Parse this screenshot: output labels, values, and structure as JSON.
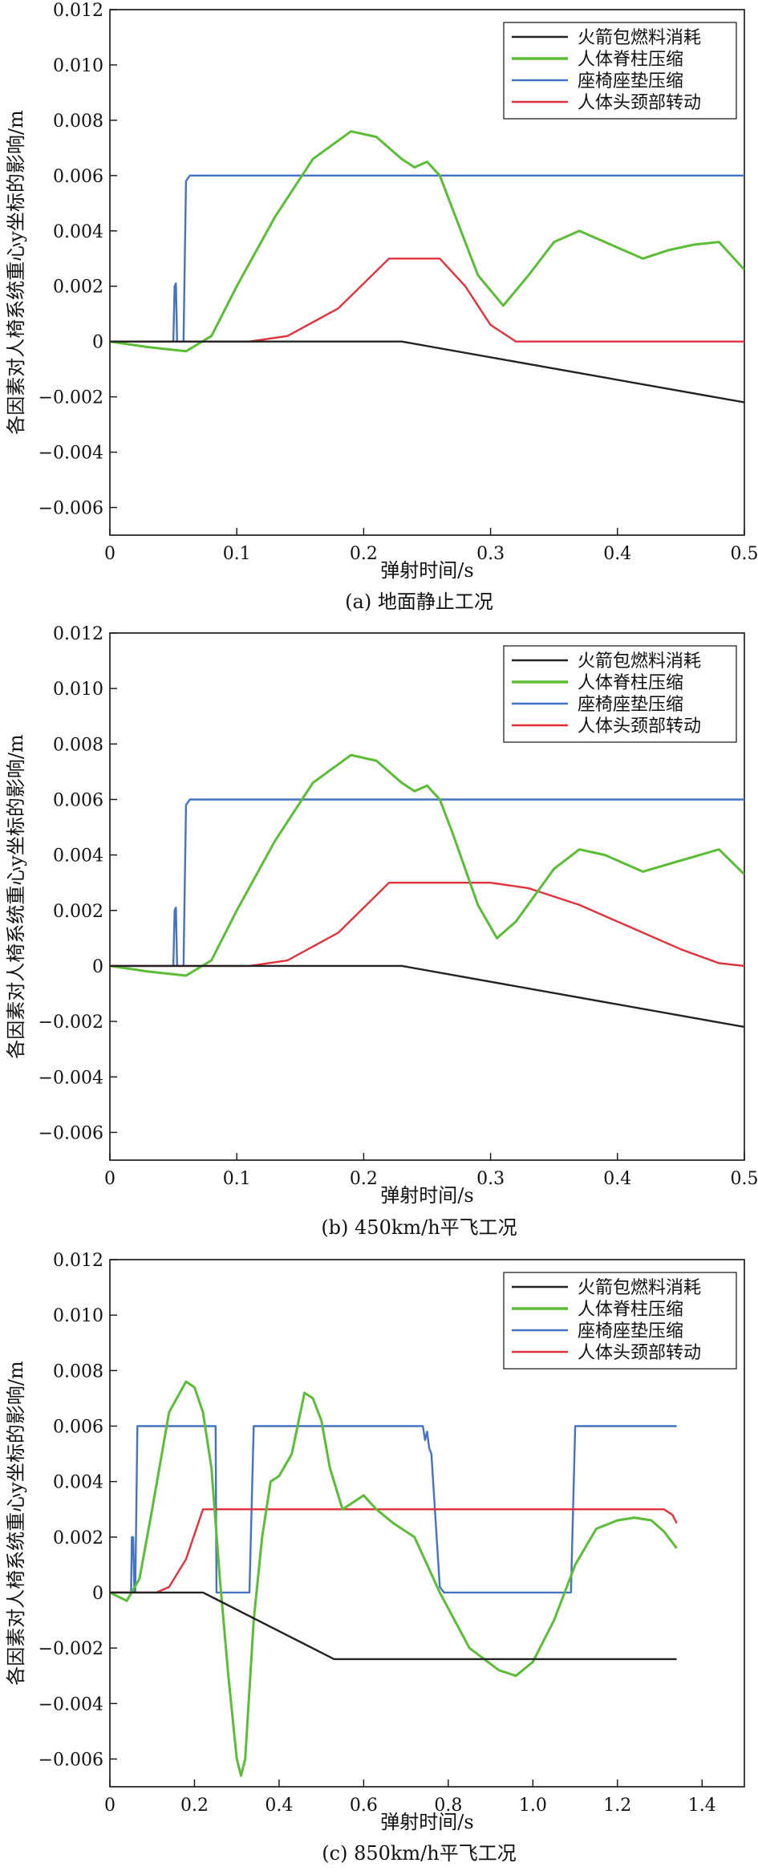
{
  "chart_data": [
    {
      "type": "line",
      "caption": "(a) 地面静止工况",
      "xlabel": "弹射时间/s",
      "ylabel": "各因素对人椅系统重心y坐标的影响/m",
      "xlim": [
        0,
        0.5
      ],
      "ylim": [
        -0.007,
        0.012
      ],
      "xticks": [
        0,
        0.1,
        0.2,
        0.3,
        0.4,
        0.5
      ],
      "xtick_labels": [
        "0",
        "0.1",
        "0.2",
        "0.3",
        "0.4",
        "0.5"
      ],
      "yticks": [
        0.012,
        0.01,
        0.008,
        0.006,
        0.004,
        0.002,
        0,
        -0.002,
        -0.004,
        -0.006
      ],
      "ytick_labels": [
        "0.012",
        "0.010",
        "0.008",
        "0.006",
        "0.004",
        "0.002",
        "0",
        "−0.002",
        "−0.004",
        "−0.006"
      ],
      "legend_position": "top-right",
      "grid": false,
      "series": [
        {
          "name": "火箭包燃料消耗",
          "color": "#222222",
          "x": [
            0,
            0.23,
            0.5
          ],
          "y": [
            0,
            0,
            -0.0022
          ]
        },
        {
          "name": "人体脊柱压缩",
          "color": "#5bbd36",
          "x": [
            0,
            0.03,
            0.06,
            0.08,
            0.1,
            0.13,
            0.16,
            0.19,
            0.21,
            0.23,
            0.24,
            0.25,
            0.26,
            0.27,
            0.29,
            0.31,
            0.33,
            0.35,
            0.37,
            0.39,
            0.42,
            0.44,
            0.46,
            0.48,
            0.5
          ],
          "y": [
            0,
            -0.0002,
            -0.00035,
            0.0002,
            0.002,
            0.0045,
            0.0066,
            0.0076,
            0.0074,
            0.0066,
            0.0063,
            0.0065,
            0.006,
            0.0048,
            0.0024,
            0.0013,
            0.0024,
            0.0036,
            0.004,
            0.0036,
            0.003,
            0.0033,
            0.0035,
            0.0036,
            0.0026
          ]
        },
        {
          "name": "座椅座垫压缩",
          "color": "#4472c4",
          "x": [
            0,
            0.05,
            0.051,
            0.052,
            0.053,
            0.058,
            0.06,
            0.063,
            0.5
          ],
          "y": [
            0,
            0,
            0.002,
            0.0021,
            0,
            0,
            0.0058,
            0.006,
            0.006
          ]
        },
        {
          "name": "人体头颈部转动",
          "color": "#e0323c",
          "x": [
            0,
            0.11,
            0.14,
            0.18,
            0.22,
            0.26,
            0.28,
            0.3,
            0.32,
            0.5
          ],
          "y": [
            0,
            0,
            0.0002,
            0.0012,
            0.003,
            0.003,
            0.002,
            0.0006,
            0,
            0
          ]
        }
      ]
    },
    {
      "type": "line",
      "caption": "(b) 450km/h平飞工况",
      "xlabel": "弹射时间/s",
      "ylabel": "各因素对人椅系统重心y坐标的影响/m",
      "xlim": [
        0,
        0.5
      ],
      "ylim": [
        -0.007,
        0.012
      ],
      "xticks": [
        0,
        0.1,
        0.2,
        0.3,
        0.4,
        0.5
      ],
      "xtick_labels": [
        "0",
        "0.1",
        "0.2",
        "0.3",
        "0.4",
        "0.5"
      ],
      "yticks": [
        0.012,
        0.01,
        0.008,
        0.006,
        0.004,
        0.002,
        0,
        -0.002,
        -0.004,
        -0.006
      ],
      "ytick_labels": [
        "0.012",
        "0.010",
        "0.008",
        "0.006",
        "0.004",
        "0.002",
        "0",
        "−0.002",
        "−0.004",
        "−0.006"
      ],
      "legend_position": "top-right",
      "grid": false,
      "series": [
        {
          "name": "火箭包燃料消耗",
          "color": "#222222",
          "x": [
            0,
            0.23,
            0.5
          ],
          "y": [
            0,
            0,
            -0.0022
          ]
        },
        {
          "name": "人体脊柱压缩",
          "color": "#5bbd36",
          "x": [
            0,
            0.03,
            0.06,
            0.08,
            0.1,
            0.13,
            0.16,
            0.19,
            0.21,
            0.23,
            0.24,
            0.25,
            0.26,
            0.27,
            0.29,
            0.305,
            0.32,
            0.35,
            0.37,
            0.39,
            0.42,
            0.45,
            0.48,
            0.5
          ],
          "y": [
            0,
            -0.0002,
            -0.00035,
            0.0002,
            0.002,
            0.0045,
            0.0066,
            0.0076,
            0.0074,
            0.0066,
            0.0063,
            0.0065,
            0.006,
            0.0048,
            0.0022,
            0.001,
            0.0016,
            0.0035,
            0.0042,
            0.004,
            0.0034,
            0.0038,
            0.0042,
            0.0033
          ]
        },
        {
          "name": "座椅座垫压缩",
          "color": "#4472c4",
          "x": [
            0,
            0.05,
            0.051,
            0.052,
            0.053,
            0.058,
            0.06,
            0.063,
            0.5
          ],
          "y": [
            0,
            0,
            0.002,
            0.0021,
            0,
            0,
            0.0058,
            0.006,
            0.006
          ]
        },
        {
          "name": "人体头颈部转动",
          "color": "#e0323c",
          "x": [
            0,
            0.11,
            0.14,
            0.18,
            0.22,
            0.3,
            0.33,
            0.37,
            0.41,
            0.45,
            0.48,
            0.5
          ],
          "y": [
            0,
            0,
            0.0002,
            0.0012,
            0.003,
            0.003,
            0.0028,
            0.0022,
            0.0014,
            0.0006,
            0.0001,
            0
          ]
        }
      ]
    },
    {
      "type": "line",
      "caption": "(c) 850km/h平飞工况",
      "xlabel": "弹射时间/s",
      "ylabel": "各因素对人椅系统重心y坐标的影响/m",
      "xlim": [
        0,
        1.5
      ],
      "ylim": [
        -0.007,
        0.012
      ],
      "xticks": [
        0,
        0.2,
        0.4,
        0.6,
        0.8,
        1.0,
        1.2,
        1.4
      ],
      "xtick_labels": [
        "0",
        "0.2",
        "0.4",
        "0.6",
        "0.8",
        "1.0",
        "1.2",
        "1.4"
      ],
      "yticks": [
        0.012,
        0.01,
        0.008,
        0.006,
        0.004,
        0.002,
        0,
        -0.002,
        -0.004,
        -0.006
      ],
      "ytick_labels": [
        "0.012",
        "0.010",
        "0.008",
        "0.006",
        "0.004",
        "0.002",
        "0",
        "−0.002",
        "−0.004",
        "−0.006"
      ],
      "legend_position": "top-right",
      "grid": false,
      "series": [
        {
          "name": "火箭包燃料消耗",
          "color": "#222222",
          "x": [
            0,
            0.22,
            0.53,
            1.34
          ],
          "y": [
            0,
            0,
            -0.0024,
            -0.0024
          ]
        },
        {
          "name": "人体脊柱压缩",
          "color": "#5bbd36",
          "x": [
            0,
            0.04,
            0.07,
            0.1,
            0.14,
            0.18,
            0.2,
            0.22,
            0.24,
            0.26,
            0.28,
            0.3,
            0.31,
            0.32,
            0.34,
            0.36,
            0.38,
            0.4,
            0.43,
            0.46,
            0.48,
            0.5,
            0.52,
            0.55,
            0.58,
            0.6,
            0.63,
            0.67,
            0.72,
            0.78,
            0.85,
            0.92,
            0.96,
            1.0,
            1.05,
            1.1,
            1.15,
            1.2,
            1.24,
            1.28,
            1.31,
            1.34
          ],
          "y": [
            0,
            -0.0003,
            0.0005,
            0.003,
            0.0065,
            0.0076,
            0.0074,
            0.0065,
            0.0045,
            0.0005,
            -0.003,
            -0.006,
            -0.0066,
            -0.006,
            -0.001,
            0.002,
            0.004,
            0.0042,
            0.005,
            0.0072,
            0.007,
            0.0062,
            0.0045,
            0.003,
            0.0033,
            0.0035,
            0.003,
            0.0025,
            0.002,
            0.0,
            -0.002,
            -0.0028,
            -0.003,
            -0.0025,
            -0.001,
            0.001,
            0.0023,
            0.0026,
            0.0027,
            0.0026,
            0.0022,
            0.0016
          ]
        },
        {
          "name": "座椅座垫压缩",
          "color": "#4472c4",
          "x": [
            0,
            0.05,
            0.052,
            0.055,
            0.058,
            0.06,
            0.065,
            0.07,
            0.25,
            0.252,
            0.33,
            0.34,
            0.35,
            0.74,
            0.745,
            0.75,
            0.755,
            0.76,
            0.78,
            0.79,
            1.09,
            1.1,
            1.11,
            1.34
          ],
          "y": [
            0,
            0,
            0.002,
            0.002,
            0,
            0,
            0.006,
            0.006,
            0.006,
            0,
            0,
            0.006,
            0.006,
            0.006,
            0.0055,
            0.0058,
            0.0052,
            0.005,
            0.0002,
            0,
            0,
            0.006,
            0.006,
            0.006
          ]
        },
        {
          "name": "人体头颈部转动",
          "color": "#e0323c",
          "x": [
            0,
            0.11,
            0.14,
            0.18,
            0.22,
            1.31,
            1.33,
            1.34
          ],
          "y": [
            0,
            0,
            0.0002,
            0.0012,
            0.003,
            0.003,
            0.0028,
            0.0025
          ]
        }
      ]
    }
  ]
}
